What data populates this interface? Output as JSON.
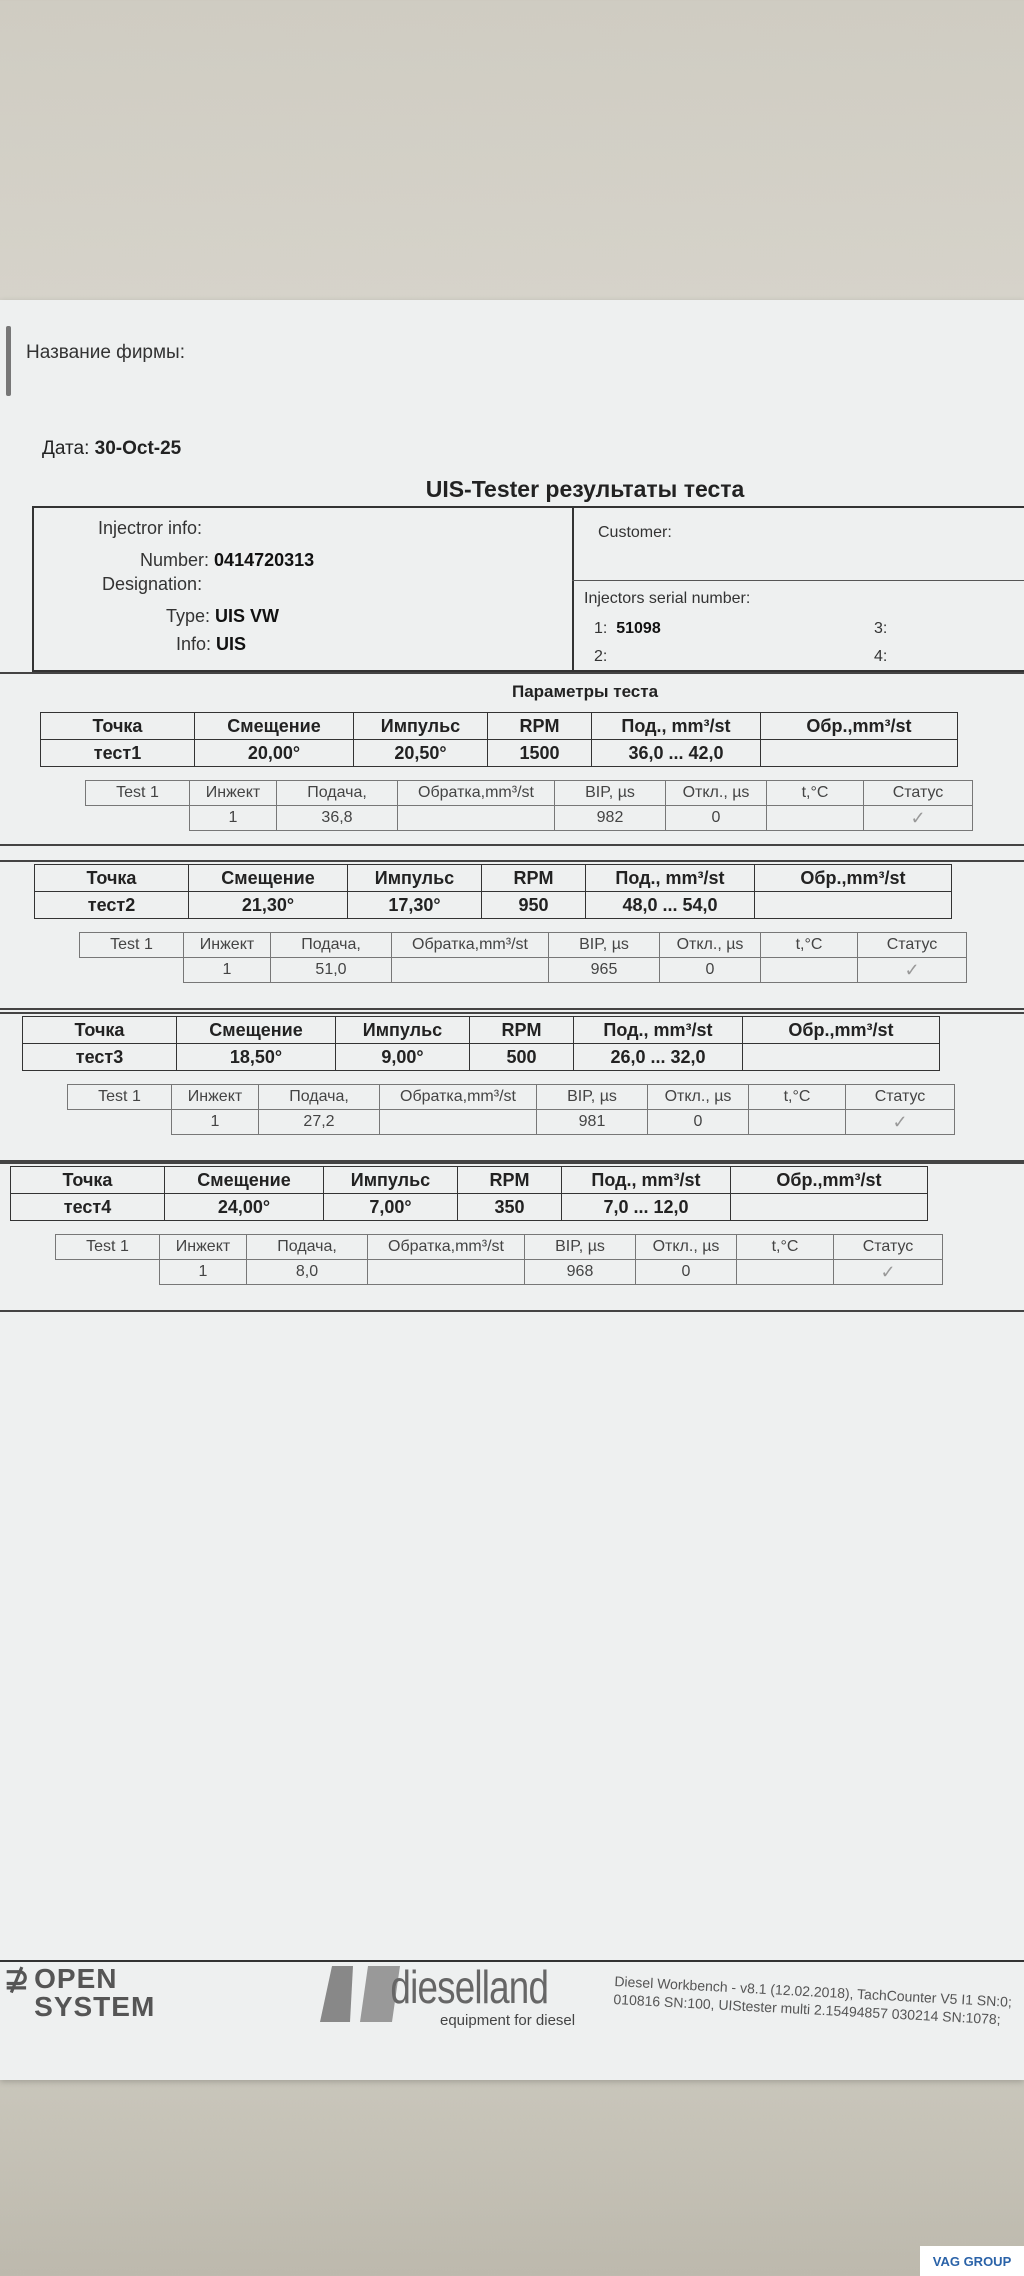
{
  "header": {
    "firm_label": "Название фирмы:",
    "date_label": "Дата:",
    "date_value": "30-Oct-25",
    "title": "UIS-Tester результаты теста"
  },
  "injector": {
    "info_label": "Injectror info:",
    "number_label": "Number:",
    "number_value": "0414720313",
    "designation_label": "Designation:",
    "type_label": "Type:",
    "type_value": "UIS VW",
    "info2_label": "Info:",
    "info2_value": "UIS"
  },
  "customer": {
    "label": "Customer:",
    "serial_label": "Injectors serial number:",
    "serials": [
      {
        "n": "1:",
        "v": "51098"
      },
      {
        "n": "2:",
        "v": ""
      },
      {
        "n": "3:",
        "v": ""
      },
      {
        "n": "4:",
        "v": ""
      }
    ]
  },
  "params_title": "Параметры теста",
  "columns": [
    "Точка",
    "Смещение",
    "Импульс",
    "RPM",
    "Под., mm³/st",
    "Обр.,mm³/st"
  ],
  "sub_columns": [
    "Test 1",
    "Инжект",
    "Подача,",
    "Обратка,mm³/st",
    "BIP, µs",
    "Откл., µs",
    "t,°C",
    "Статус"
  ],
  "tests": [
    {
      "name": "тест1",
      "offset": "20,00°",
      "impulse": "20,50°",
      "rpm": "1500",
      "feed": "36,0 ... 42,0",
      "ret": "",
      "inj": "1",
      "feed_val": "36,8",
      "ret_val": "",
      "bip": "982",
      "dev": "0",
      "temp": "",
      "status": "ok"
    },
    {
      "name": "тест2",
      "offset": "21,30°",
      "impulse": "17,30°",
      "rpm": "950",
      "feed": "48,0 ... 54,0",
      "ret": "",
      "inj": "1",
      "feed_val": "51,0",
      "ret_val": "",
      "bip": "965",
      "dev": "0",
      "temp": "",
      "status": "ok"
    },
    {
      "name": "тест3",
      "offset": "18,50°",
      "impulse": "9,00°",
      "rpm": "500",
      "feed": "26,0 ... 32,0",
      "ret": "",
      "inj": "1",
      "feed_val": "27,2",
      "ret_val": "",
      "bip": "981",
      "dev": "0",
      "temp": "",
      "status": "ok"
    },
    {
      "name": "тест4",
      "offset": "24,00°",
      "impulse": "7,00°",
      "rpm": "350",
      "feed": "7,0 ... 12,0",
      "ret": "",
      "inj": "1",
      "feed_val": "8,0",
      "ret_val": "",
      "bip": "968",
      "dev": "0",
      "temp": "",
      "status": "ok"
    }
  ],
  "footer": {
    "logo1": "OPEN SYSTEM",
    "logo2": "dieselland",
    "logo2_tag": "equipment for diesel",
    "version_line1": "Diesel Workbench - v8.1 (12.02.2018), TachCounter V5 I1 SN:0;",
    "version_line2": "010816 SN:100,  UIStester multi 2.15494857 030214 SN:1078;",
    "watermark": "VAG GROUP"
  },
  "icons": {
    "status_ok": "checkmark-icon"
  }
}
